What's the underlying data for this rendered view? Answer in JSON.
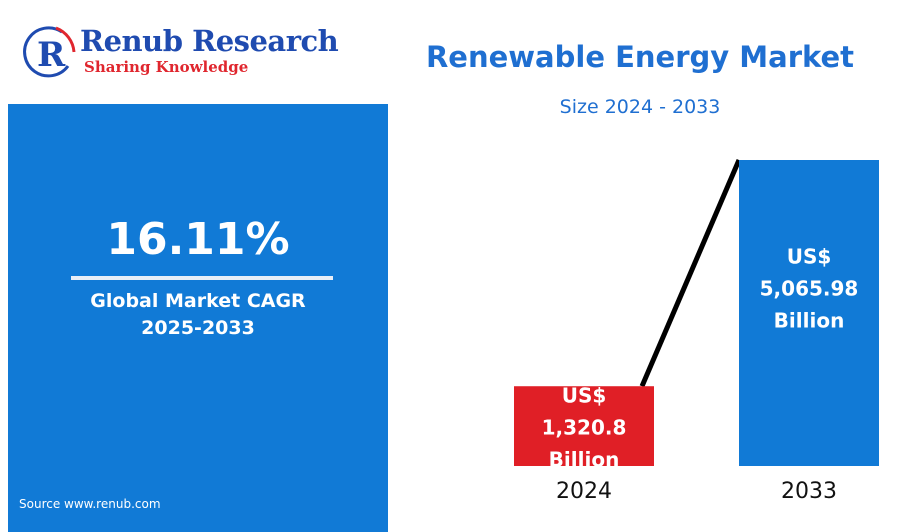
{
  "logo": {
    "name": "Renub Research",
    "tagline": "Sharing Knowledge",
    "colors": {
      "primary": "#1f4bb0",
      "accent": "#e0262e"
    }
  },
  "cagr": {
    "value": "16.11%",
    "label_line1": "Global Market CAGR",
    "label_line2": "2025-2033",
    "color": "#117ad6"
  },
  "source": "Source  www.renub.com",
  "chart_data": {
    "type": "bar",
    "title": "Renewable Energy Market",
    "subtitle": "Size 2024 - 2033",
    "categories": [
      "2024",
      "2033"
    ],
    "values": [
      1320.8,
      5065.98
    ],
    "unit": "US$ Billion",
    "data_labels": [
      [
        "US$",
        "1,320.8",
        "Billion"
      ],
      [
        "US$",
        "5,065.98",
        "Billion"
      ]
    ],
    "colors": [
      "#e01f26",
      "#117ad6"
    ],
    "trend_line": true,
    "grid": false,
    "xlabel": "",
    "ylabel": ""
  }
}
